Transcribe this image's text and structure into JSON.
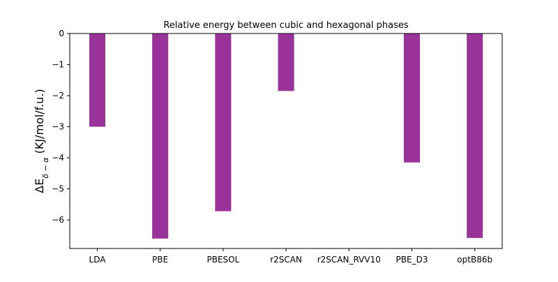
{
  "chart_data": {
    "type": "bar",
    "title": "Relative energy between cubic and hexagonal phases",
    "xlabel": "",
    "ylabel": "ΔE",
    "ylabel_subscript": "δ − α",
    "ylabel_unit": " (KJ/mol/f.u.)",
    "categories": [
      "LDA",
      "PBE",
      "PBESOL",
      "r2SCAN",
      "r2SCAN_RVV10",
      "PBE_D3",
      "optB86b"
    ],
    "values": [
      -3.0,
      -6.6,
      -5.72,
      -1.85,
      null,
      -4.15,
      -6.58
    ],
    "ylim": [
      -6.92,
      0
    ],
    "yticks": [
      0,
      -1,
      -2,
      -3,
      -4,
      -5,
      -6
    ],
    "ytick_labels": [
      "0",
      "−1",
      "−2",
      "−3",
      "−4",
      "−5",
      "−6"
    ],
    "bar_color": "#993399",
    "grid": false
  }
}
